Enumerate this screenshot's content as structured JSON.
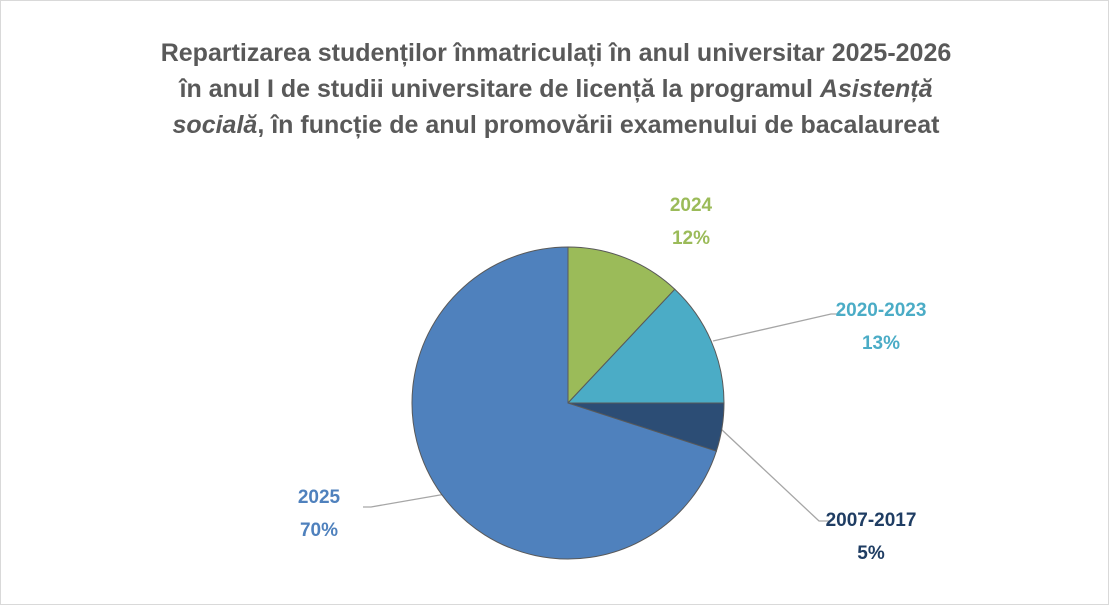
{
  "chart_data": {
    "type": "pie",
    "title": [
      "Repartizarea studenților înmatriculați în anul universitar 2025-2026 în anul I de studii universitare de licență la programul ",
      "Asistență socială",
      ", în funcție de anul promovării examenului de bacalaureat"
    ],
    "categories": [
      "2024",
      "2020-2023",
      "2007-2017",
      "2025"
    ],
    "values": [
      12,
      13,
      5,
      70
    ],
    "value_labels": [
      "12%",
      "13%",
      "5%",
      "70%"
    ],
    "colors": [
      "#9bbb59",
      "#4bacc6",
      "#2c4d75",
      "#4f81bd"
    ],
    "label_colors": [
      "#9bbb59",
      "#4bacc6",
      "#1f3d63",
      "#4f81bd"
    ]
  }
}
